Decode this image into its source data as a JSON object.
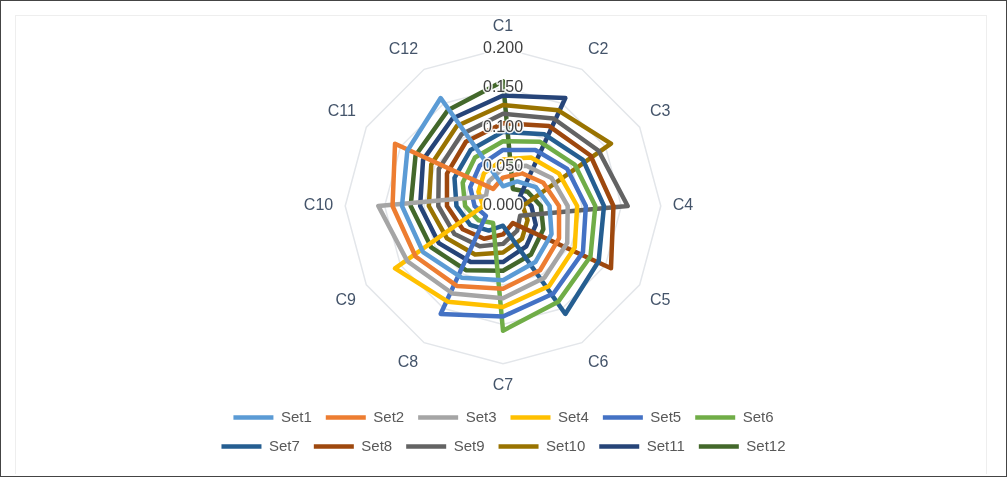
{
  "chart_data": {
    "type": "radar",
    "categories": [
      "C1",
      "C2",
      "C3",
      "C4",
      "C5",
      "C6",
      "C7",
      "C8",
      "C9",
      "C10",
      "C11",
      "C12"
    ],
    "ylim": [
      0,
      0.2
    ],
    "yticks": [
      {
        "value": 0,
        "label": "0.000"
      },
      {
        "value": 0.05,
        "label": "0.050"
      },
      {
        "value": 0.1,
        "label": "0.100"
      },
      {
        "value": 0.15,
        "label": "0.150"
      },
      {
        "value": 0.2,
        "label": "0.200"
      }
    ],
    "grid": true,
    "legend": "bottom",
    "marker": "none",
    "series": [
      {
        "name": "Set1",
        "color": "#5b9bd5",
        "values": [
          0.025,
          0.036,
          0.048,
          0.059,
          0.071,
          0.082,
          0.094,
          0.105,
          0.117,
          0.128,
          0.14,
          0.158
        ]
      },
      {
        "name": "Set2",
        "color": "#ed7d31",
        "values": [
          0.036,
          0.048,
          0.059,
          0.071,
          0.082,
          0.094,
          0.105,
          0.117,
          0.128,
          0.14,
          0.158,
          0.025
        ]
      },
      {
        "name": "Set3",
        "color": "#a5a5a5",
        "values": [
          0.048,
          0.059,
          0.071,
          0.082,
          0.094,
          0.105,
          0.117,
          0.128,
          0.14,
          0.158,
          0.025,
          0.036
        ]
      },
      {
        "name": "Set4",
        "color": "#ffc000",
        "values": [
          0.059,
          0.071,
          0.082,
          0.094,
          0.105,
          0.117,
          0.128,
          0.14,
          0.158,
          0.025,
          0.036,
          0.048
        ]
      },
      {
        "name": "Set5",
        "color": "#4472c4",
        "values": [
          0.071,
          0.082,
          0.094,
          0.105,
          0.117,
          0.128,
          0.14,
          0.158,
          0.025,
          0.036,
          0.048,
          0.059
        ]
      },
      {
        "name": "Set6",
        "color": "#70ad47",
        "values": [
          0.082,
          0.094,
          0.105,
          0.117,
          0.128,
          0.14,
          0.158,
          0.025,
          0.036,
          0.048,
          0.059,
          0.071
        ]
      },
      {
        "name": "Set7",
        "color": "#255e91",
        "values": [
          0.094,
          0.105,
          0.117,
          0.128,
          0.14,
          0.158,
          0.025,
          0.036,
          0.048,
          0.059,
          0.071,
          0.082
        ]
      },
      {
        "name": "Set8",
        "color": "#9e480e",
        "values": [
          0.105,
          0.117,
          0.128,
          0.14,
          0.158,
          0.025,
          0.036,
          0.048,
          0.059,
          0.071,
          0.082,
          0.094
        ]
      },
      {
        "name": "Set9",
        "color": "#636363",
        "values": [
          0.117,
          0.128,
          0.14,
          0.158,
          0.025,
          0.036,
          0.048,
          0.059,
          0.071,
          0.082,
          0.094,
          0.105
        ]
      },
      {
        "name": "Set10",
        "color": "#997300",
        "values": [
          0.128,
          0.14,
          0.158,
          0.025,
          0.036,
          0.048,
          0.059,
          0.071,
          0.082,
          0.094,
          0.105,
          0.117
        ]
      },
      {
        "name": "Set11",
        "color": "#264478",
        "values": [
          0.14,
          0.158,
          0.025,
          0.036,
          0.048,
          0.059,
          0.071,
          0.082,
          0.094,
          0.105,
          0.117,
          0.128
        ]
      },
      {
        "name": "Set12",
        "color": "#43682b",
        "values": [
          0.158,
          0.025,
          0.036,
          0.048,
          0.059,
          0.071,
          0.082,
          0.094,
          0.105,
          0.117,
          0.128,
          0.14
        ]
      }
    ]
  }
}
